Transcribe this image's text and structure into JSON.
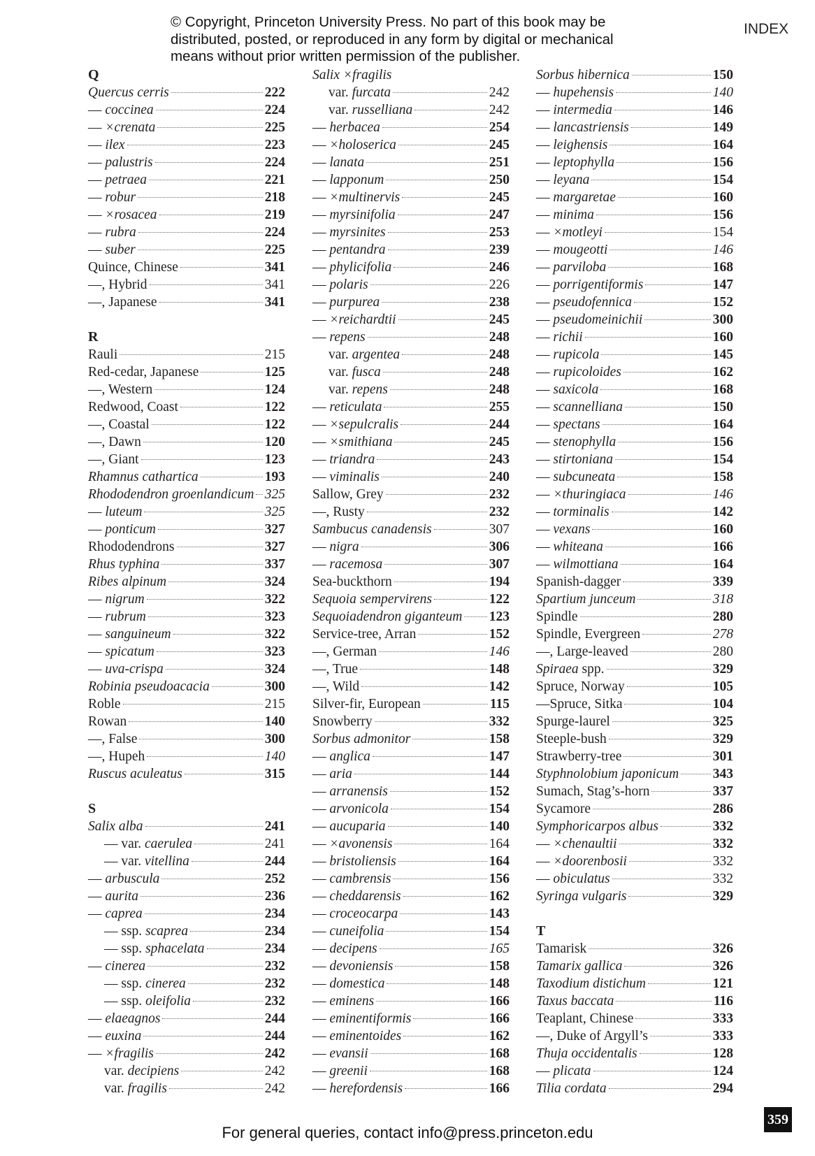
{
  "header": {
    "copyright_lines": [
      "© Copyright, Princeton University Press. No part of this book may be",
      "distributed, posted, or reproduced in any form by digital or mechanical",
      "means without prior written permission of the publisher."
    ],
    "running_head": "INDEX"
  },
  "footer": {
    "contact": "For general queries, contact info@press.princeton.edu",
    "page_number": "359"
  },
  "colors": {
    "text": "#231f20",
    "folio_bg": "#111111"
  },
  "columns": [
    [
      {
        "h": "Q"
      },
      {
        "i": "Quercus cerris",
        "n": "222",
        "w": "b"
      },
      {
        "a": "— ",
        "i": "coccinea",
        "n": "224",
        "w": "b"
      },
      {
        "a": "— ",
        "i": "×crenata",
        "n": "225",
        "w": "b"
      },
      {
        "a": "— ",
        "i": "ilex",
        "n": "223",
        "w": "b"
      },
      {
        "a": "— ",
        "i": "palustris",
        "n": "224",
        "w": "b"
      },
      {
        "a": "— ",
        "i": "petraea",
        "n": "221",
        "w": "b"
      },
      {
        "a": "— ",
        "i": "robur",
        "n": "218",
        "w": "b"
      },
      {
        "a": "— ",
        "i": "×rosacea",
        "n": "219",
        "w": "b"
      },
      {
        "a": "— ",
        "i": "rubra",
        "n": "224",
        "w": "b"
      },
      {
        "a": "— ",
        "i": "suber",
        "n": "225",
        "w": "b"
      },
      {
        "a": "Quince, Chinese",
        "n": "341",
        "w": "b"
      },
      {
        "a": "—, Hybrid",
        "n": "341",
        "w": "r"
      },
      {
        "a": "—, Japanese",
        "n": "341",
        "w": "b"
      },
      {
        "gap": true
      },
      {
        "h": "R"
      },
      {
        "a": "Rauli",
        "n": "215",
        "w": "r"
      },
      {
        "a": "Red-cedar, Japanese",
        "n": "125",
        "w": "b"
      },
      {
        "a": "—, Western",
        "n": "124",
        "w": "b"
      },
      {
        "a": "Redwood, Coast",
        "n": "122",
        "w": "b"
      },
      {
        "a": "—, Coastal",
        "n": "122",
        "w": "b"
      },
      {
        "a": "—, Dawn",
        "n": "120",
        "w": "b"
      },
      {
        "a": "—, Giant",
        "n": "123",
        "w": "b"
      },
      {
        "i": "Rhamnus cathartica",
        "n": "193",
        "w": "b"
      },
      {
        "i": "Rhododendron groenlandicum",
        "n": "325",
        "w": "i"
      },
      {
        "a": "— ",
        "i": "luteum",
        "n": "325",
        "w": "i"
      },
      {
        "a": "— ",
        "i": "ponticum",
        "n": "327",
        "w": "b"
      },
      {
        "a": "Rhododendrons",
        "n": "327",
        "w": "b"
      },
      {
        "i": "Rhus typhina",
        "n": "337",
        "w": "b"
      },
      {
        "i": "Ribes alpinum",
        "n": "324",
        "w": "b"
      },
      {
        "a": "— ",
        "i": "nigrum",
        "n": "322",
        "w": "b"
      },
      {
        "a": "— ",
        "i": "rubrum",
        "n": "323",
        "w": "b"
      },
      {
        "a": "— ",
        "i": "sanguineum",
        "n": "322",
        "w": "b"
      },
      {
        "a": "— ",
        "i": "spicatum",
        "n": "323",
        "w": "b"
      },
      {
        "a": "— ",
        "i": "uva-crispa",
        "n": "324",
        "w": "b"
      },
      {
        "i": "Robinia pseudoacacia",
        "n": "300",
        "w": "b"
      },
      {
        "a": "Roble",
        "n": "215",
        "w": "r"
      },
      {
        "a": "Rowan",
        "n": "140",
        "w": "b"
      },
      {
        "a": "—, False",
        "n": "300",
        "w": "b"
      },
      {
        "a": "—, Hupeh",
        "n": "140",
        "w": "i"
      },
      {
        "i": "Ruscus aculeatus",
        "n": "315",
        "w": "b"
      },
      {
        "gap": true
      },
      {
        "h": "S"
      },
      {
        "i": "Salix alba",
        "n": "241",
        "w": "b"
      },
      {
        "lv": 1,
        "a": "— var. ",
        "i": "caerulea",
        "n": "241",
        "w": "r"
      },
      {
        "lv": 1,
        "a": "— var. ",
        "i": "vitellina",
        "n": "244",
        "w": "b"
      },
      {
        "a": "— ",
        "i": "arbuscula",
        "n": "252",
        "w": "b"
      },
      {
        "a": "— ",
        "i": "aurita",
        "n": "236",
        "w": "b"
      },
      {
        "a": "— ",
        "i": "caprea",
        "n": "234",
        "w": "b"
      },
      {
        "lv": 1,
        "a": "— ssp. ",
        "i": "scaprea",
        "n": "234",
        "w": "b"
      },
      {
        "lv": 1,
        "a": "— ssp. ",
        "i": "sphacelata",
        "n": "234",
        "w": "b"
      },
      {
        "a": "— ",
        "i": "cinerea",
        "n": "232",
        "w": "b"
      },
      {
        "lv": 1,
        "a": "— ssp. ",
        "i": "cinerea",
        "n": "232",
        "w": "b"
      },
      {
        "lv": 1,
        "a": "— ssp. ",
        "i": "oleifolia",
        "n": "232",
        "w": "b"
      },
      {
        "a": "— ",
        "i": "elaeagnos",
        "n": "244",
        "w": "b"
      },
      {
        "a": "— ",
        "i": "euxina",
        "n": "244",
        "w": "b"
      },
      {
        "a": "— ",
        "i": "×fragilis",
        "n": "242",
        "w": "b"
      },
      {
        "lv": 1,
        "a": "var. ",
        "i": "decipiens",
        "n": "242",
        "w": "r"
      },
      {
        "lv": 1,
        "a": "var. ",
        "i": "fragilis",
        "n": "242",
        "w": "r"
      }
    ],
    [
      {
        "i": "Salix ×fragilis"
      },
      {
        "lv": 1,
        "a": "var. ",
        "i": "furcata",
        "n": "242",
        "w": "r"
      },
      {
        "lv": 1,
        "a": "var. ",
        "i": "russelliana",
        "n": "242",
        "w": "r"
      },
      {
        "a": "— ",
        "i": "herbacea",
        "n": "254",
        "w": "b"
      },
      {
        "a": "— ",
        "i": "×holoserica",
        "n": "245",
        "w": "b"
      },
      {
        "a": "— ",
        "i": "lanata",
        "n": "251",
        "w": "b"
      },
      {
        "a": "— ",
        "i": "lapponum",
        "n": "250",
        "w": "b"
      },
      {
        "a": "— ",
        "i": "×multinervis",
        "n": "245",
        "w": "b"
      },
      {
        "a": "— ",
        "i": "myrsinifolia",
        "n": "247",
        "w": "b"
      },
      {
        "a": "— ",
        "i": "myrsinites",
        "n": "253",
        "w": "b"
      },
      {
        "a": "— ",
        "i": "pentandra",
        "n": "239",
        "w": "b"
      },
      {
        "a": "— ",
        "i": "phylicifolia",
        "n": "246",
        "w": "b"
      },
      {
        "a": "— ",
        "i": "polaris",
        "n": "226",
        "w": "r"
      },
      {
        "a": "— ",
        "i": "purpurea",
        "n": "238",
        "w": "b"
      },
      {
        "a": "— ",
        "i": "×reichardtii",
        "n": "245",
        "w": "b"
      },
      {
        "a": "— ",
        "i": "repens",
        "n": "248",
        "w": "b"
      },
      {
        "lv": 1,
        "a": "var. ",
        "i": "argentea",
        "n": "248",
        "w": "b"
      },
      {
        "lv": 1,
        "a": "var. ",
        "i": "fusca",
        "n": "248",
        "w": "b"
      },
      {
        "lv": 1,
        "a": "var. ",
        "i": "repens",
        "n": "248",
        "w": "b"
      },
      {
        "a": "— ",
        "i": "reticulata",
        "n": "255",
        "w": "b"
      },
      {
        "a": "— ",
        "i": "×sepulcralis",
        "n": "244",
        "w": "b"
      },
      {
        "a": "— ",
        "i": "×smithiana",
        "n": "245",
        "w": "b"
      },
      {
        "a": "— ",
        "i": "triandra",
        "n": "243",
        "w": "b"
      },
      {
        "a": "— ",
        "i": "viminalis",
        "n": "240",
        "w": "b"
      },
      {
        "a": "Sallow, Grey",
        "n": "232",
        "w": "b"
      },
      {
        "a": "—, Rusty",
        "n": "232",
        "w": "b"
      },
      {
        "i": "Sambucus canadensis",
        "n": "307",
        "w": "r"
      },
      {
        "a": "— ",
        "i": "nigra",
        "n": "306",
        "w": "b"
      },
      {
        "a": "— ",
        "i": "racemosa",
        "n": "307",
        "w": "b"
      },
      {
        "a": "Sea-buckthorn",
        "n": "194",
        "w": "b"
      },
      {
        "i": "Sequoia sempervirens",
        "n": "122",
        "w": "b"
      },
      {
        "i": "Sequoiadendron giganteum",
        "n": "123",
        "w": "b"
      },
      {
        "a": "Service-tree, Arran",
        "n": "152",
        "w": "b"
      },
      {
        "a": "—, German",
        "n": "146",
        "w": "i"
      },
      {
        "a": "—, True",
        "n": "148",
        "w": "b"
      },
      {
        "a": "—, Wild",
        "n": "142",
        "w": "b"
      },
      {
        "a": "Silver-fir, European",
        "n": "115",
        "w": "b"
      },
      {
        "a": "Snowberry",
        "n": "332",
        "w": "b"
      },
      {
        "i": "Sorbus admonitor",
        "n": "158",
        "w": "b"
      },
      {
        "a": "— ",
        "i": "anglica",
        "n": "147",
        "w": "b"
      },
      {
        "a": "— ",
        "i": "aria",
        "n": "144",
        "w": "b"
      },
      {
        "a": "— ",
        "i": "arranensis",
        "n": "152",
        "w": "b"
      },
      {
        "a": "— ",
        "i": "arvonicola",
        "n": "154",
        "w": "b"
      },
      {
        "a": "— ",
        "i": "aucuparia",
        "n": "140",
        "w": "b"
      },
      {
        "a": "— ",
        "i": "×avonensis",
        "n": "164",
        "w": "r"
      },
      {
        "a": "— ",
        "i": "bristoliensis",
        "n": "164",
        "w": "b"
      },
      {
        "a": "— ",
        "i": "cambrensis",
        "n": "156",
        "w": "b"
      },
      {
        "a": "— ",
        "i": "cheddarensis",
        "n": "162",
        "w": "b"
      },
      {
        "a": "— ",
        "i": "croceocarpa",
        "n": "143",
        "w": "b"
      },
      {
        "a": "— ",
        "i": "cuneifolia",
        "n": "154",
        "w": "b"
      },
      {
        "a": "— ",
        "i": "decipens",
        "n": "165",
        "w": "i"
      },
      {
        "a": "— ",
        "i": "devoniensis",
        "n": "158",
        "w": "b"
      },
      {
        "a": "— ",
        "i": "domestica",
        "n": "148",
        "w": "b"
      },
      {
        "a": "— ",
        "i": "eminens",
        "n": "166",
        "w": "b"
      },
      {
        "a": "— ",
        "i": "eminentiformis",
        "n": "166",
        "w": "b"
      },
      {
        "a": "— ",
        "i": "eminentoides",
        "n": "162",
        "w": "b"
      },
      {
        "a": "— ",
        "i": "evansii",
        "n": "168",
        "w": "b"
      },
      {
        "a": "— ",
        "i": "greenii",
        "n": "168",
        "w": "b"
      },
      {
        "a": "— ",
        "i": "herefordensis",
        "n": "166",
        "w": "b"
      }
    ],
    [
      {
        "i": "Sorbus hibernica",
        "n": "150",
        "w": "b"
      },
      {
        "a": "— ",
        "i": "hupehensis",
        "n": "140",
        "w": "i"
      },
      {
        "a": "— ",
        "i": "intermedia",
        "n": "146",
        "w": "b"
      },
      {
        "a": "— ",
        "i": "lancastriensis",
        "n": "149",
        "w": "b"
      },
      {
        "a": "— ",
        "i": "leighensis",
        "n": "164",
        "w": "b"
      },
      {
        "a": "— ",
        "i": "leptophylla",
        "n": "156",
        "w": "b"
      },
      {
        "a": "— ",
        "i": "leyana",
        "n": "154",
        "w": "b"
      },
      {
        "a": "— ",
        "i": "margaretae",
        "n": "160",
        "w": "b"
      },
      {
        "a": "— ",
        "i": "minima",
        "n": "156",
        "w": "b"
      },
      {
        "a": "— ",
        "i": "×motleyi",
        "n": "154",
        "w": "r"
      },
      {
        "a": "— ",
        "i": "mougeotti",
        "n": "146",
        "w": "i"
      },
      {
        "a": "— ",
        "i": "parviloba",
        "n": "168",
        "w": "b"
      },
      {
        "a": "— ",
        "i": "porrigentiformis",
        "n": "147",
        "w": "b"
      },
      {
        "a": "— ",
        "i": "pseudofennica",
        "n": "152",
        "w": "b"
      },
      {
        "a": "— ",
        "i": "pseudomeinichii",
        "n": "300",
        "w": "b"
      },
      {
        "a": "— ",
        "i": "richii",
        "n": "160",
        "w": "b"
      },
      {
        "a": "— ",
        "i": "rupicola",
        "n": "145",
        "w": "b"
      },
      {
        "a": "— ",
        "i": "rupicoloides",
        "n": "162",
        "w": "b"
      },
      {
        "a": "— ",
        "i": "saxicola",
        "n": "168",
        "w": "b"
      },
      {
        "a": "— ",
        "i": "scannelliana",
        "n": "150",
        "w": "b"
      },
      {
        "a": "— ",
        "i": "spectans",
        "n": "164",
        "w": "b"
      },
      {
        "a": "— ",
        "i": "stenophylla",
        "n": "156",
        "w": "b"
      },
      {
        "a": "— ",
        "i": "stirtoniana",
        "n": "154",
        "w": "b"
      },
      {
        "a": "— ",
        "i": "subcuneata",
        "n": "158",
        "w": "b"
      },
      {
        "a": "— ",
        "i": "×thuringiaca",
        "n": "146",
        "w": "i"
      },
      {
        "a": "— ",
        "i": "torminalis",
        "n": "142",
        "w": "b"
      },
      {
        "a": "— ",
        "i": "vexans",
        "n": "160",
        "w": "b"
      },
      {
        "a": "— ",
        "i": "whiteana",
        "n": "166",
        "w": "b"
      },
      {
        "a": "— ",
        "i": "wilmottiana",
        "n": "164",
        "w": "b"
      },
      {
        "a": "Spanish-dagger",
        "n": "339",
        "w": "b"
      },
      {
        "i": "Spartium junceum",
        "n": "318",
        "w": "i"
      },
      {
        "a": "Spindle",
        "n": "280",
        "w": "b"
      },
      {
        "a": "Spindle, Evergreen",
        "n": "278",
        "w": "i"
      },
      {
        "a": "—, Large-leaved",
        "n": "280",
        "w": "r"
      },
      {
        "i": "Spiraea",
        "z": " spp.",
        "n": "329",
        "w": "b"
      },
      {
        "a": "Spruce, Norway",
        "n": "105",
        "w": "b"
      },
      {
        "a": "—Spruce, Sitka",
        "n": "104",
        "w": "b"
      },
      {
        "a": "Spurge-laurel",
        "n": "325",
        "w": "b"
      },
      {
        "a": "Steeple-bush",
        "n": "329",
        "w": "b"
      },
      {
        "a": "Strawberry-tree",
        "n": "301",
        "w": "b"
      },
      {
        "i": "Styphnolobium japonicum",
        "n": "343",
        "w": "b"
      },
      {
        "a": "Sumach, Stag’s-horn",
        "n": "337",
        "w": "b"
      },
      {
        "a": "Sycamore",
        "n": "286",
        "w": "b"
      },
      {
        "i": "Symphoricarpos albus",
        "n": "332",
        "w": "b"
      },
      {
        "a": "— ",
        "i": "×chenaultii",
        "n": "332",
        "w": "b"
      },
      {
        "a": "— ",
        "i": "×doorenbosii",
        "n": "332",
        "w": "r"
      },
      {
        "a": "— ",
        "i": "obiculatus",
        "n": "332",
        "w": "r"
      },
      {
        "i": "Syringa vulgaris",
        "n": "329",
        "w": "b"
      },
      {
        "gap": true
      },
      {
        "h": "T"
      },
      {
        "a": "Tamarisk",
        "n": "326",
        "w": "b"
      },
      {
        "i": "Tamarix gallica",
        "n": "326",
        "w": "b"
      },
      {
        "i": "Taxodium distichum",
        "n": "121",
        "w": "b"
      },
      {
        "i": "Taxus baccata",
        "n": "116",
        "w": "b"
      },
      {
        "a": "Teaplant, Chinese",
        "n": "333",
        "w": "b"
      },
      {
        "a": "—, Duke of Argyll’s",
        "n": "333",
        "w": "b"
      },
      {
        "i": "Thuja occidentalis",
        "n": "128",
        "w": "b"
      },
      {
        "a": "— ",
        "i": "plicata",
        "n": "124",
        "w": "b"
      },
      {
        "i": "Tilia cordata",
        "n": "294",
        "w": "b"
      }
    ]
  ]
}
